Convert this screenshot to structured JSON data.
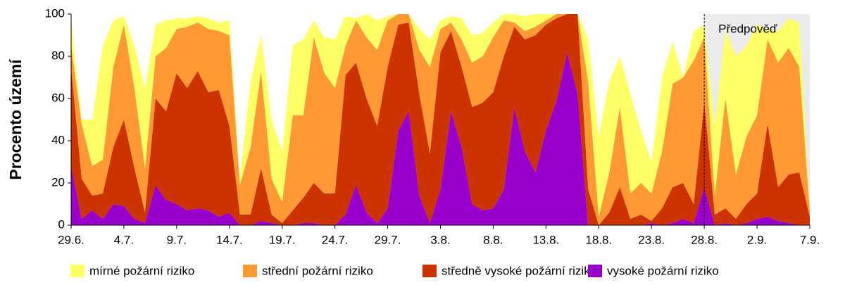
{
  "chart_data": {
    "type": "stacked-area",
    "y_label": "Procento území",
    "categories": [
      "29.6.",
      null,
      null,
      null,
      null,
      "4.7.",
      null,
      null,
      null,
      null,
      "9.7.",
      null,
      null,
      null,
      null,
      "14.7.",
      null,
      null,
      null,
      null,
      "19.7.",
      null,
      null,
      null,
      null,
      "24.7.",
      null,
      null,
      null,
      null,
      "29.7.",
      null,
      null,
      null,
      null,
      "3.8.",
      null,
      null,
      null,
      null,
      "8.8.",
      null,
      null,
      null,
      null,
      "13.8.",
      null,
      null,
      null,
      null,
      "18.8.",
      null,
      null,
      null,
      null,
      "23.8.",
      null,
      null,
      null,
      null,
      "28.8.",
      null,
      null,
      null,
      null,
      "2.9.",
      null,
      null,
      null,
      null,
      "7.9."
    ],
    "series": [
      {
        "name": "mírné požární riziko",
        "color": "#ffff66",
        "values": [
          12,
          2,
          22,
          54,
          22,
          4,
          20,
          38,
          15,
          13,
          5,
          4,
          3,
          5,
          4,
          7,
          3,
          31,
          17,
          28,
          24,
          33,
          36,
          8,
          17,
          23,
          14,
          1,
          11,
          14,
          2,
          0,
          0,
          10,
          13,
          4,
          3,
          10,
          13,
          11,
          7,
          3,
          4,
          7,
          6,
          3,
          0,
          0,
          0,
          20,
          38,
          43,
          24,
          47,
          25,
          15,
          35,
          20,
          0,
          14,
          6,
          33,
          32,
          56,
          43,
          43,
          5,
          15,
          14,
          21,
          0
        ]
      },
      {
        "name": "střední požární riziko",
        "color": "#ff9933",
        "values": [
          10,
          26,
          14,
          16,
          38,
          45,
          38,
          21,
          20,
          30,
          21,
          29,
          23,
          30,
          28,
          43,
          14,
          32,
          46,
          17,
          10,
          45,
          39,
          69,
          57,
          50,
          14,
          20,
          29,
          36,
          22,
          5,
          4,
          21,
          41,
          11,
          4,
          13,
          21,
          22,
          26,
          17,
          2,
          4,
          4,
          2,
          2,
          0,
          0,
          51,
          4,
          19,
          38,
          12,
          15,
          13,
          27,
          49,
          50,
          68,
          31,
          9,
          52,
          21,
          32,
          37,
          40,
          59,
          60,
          50,
          3
        ]
      },
      {
        "name": "středně vysoké požární riziko",
        "color": "#cc3300",
        "values": [
          47,
          19,
          7,
          12,
          27,
          41,
          24,
          5,
          41,
          42,
          62,
          58,
          65,
          56,
          60,
          41,
          5,
          5,
          25,
          4,
          1,
          7,
          12,
          19,
          15,
          15,
          66,
          58,
          54,
          46,
          67,
          50,
          42,
          48,
          33,
          65,
          38,
          38,
          46,
          51,
          55,
          63,
          38,
          53,
          65,
          50,
          39,
          18,
          38,
          17,
          0,
          6,
          18,
          3,
          5,
          1,
          8,
          17,
          17,
          9,
          40,
          5,
          7,
          3,
          9,
          12,
          44,
          16,
          23,
          25,
          4
        ]
      },
      {
        "name": "vysoké požární riziko",
        "color": "#9900cc",
        "values": [
          28,
          3,
          7,
          3,
          10,
          9,
          3,
          1,
          19,
          12,
          10,
          7,
          8,
          7,
          4,
          6,
          0,
          0,
          2,
          1,
          0,
          0,
          1,
          1,
          0,
          0,
          5,
          19,
          6,
          1,
          8,
          45,
          54,
          14,
          1,
          17,
          54,
          37,
          10,
          7,
          8,
          17,
          56,
          35,
          25,
          45,
          59,
          82,
          62,
          0,
          0,
          0,
          0,
          0,
          0,
          1,
          0,
          1,
          3,
          1,
          18,
          0,
          1,
          0,
          1,
          3,
          4,
          2,
          1,
          0,
          0
        ]
      }
    ],
    "ylim": [
      0,
      100
    ],
    "yticks": [
      0,
      20,
      40,
      60,
      80,
      100
    ],
    "forecast": {
      "label": "Předpověď",
      "from": "28.8.",
      "color": "#ebebeb"
    },
    "grid": false
  }
}
